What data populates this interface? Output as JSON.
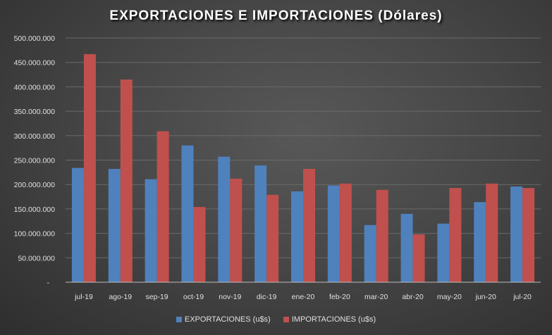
{
  "chart_data": {
    "type": "bar",
    "title": "EXPORTACIONES  E IMPORTACIONES  (Dólares)",
    "xlabel": "",
    "ylabel": "",
    "ylim": [
      0,
      500000000
    ],
    "yticks": [
      0,
      50000000,
      100000000,
      150000000,
      200000000,
      250000000,
      300000000,
      350000000,
      400000000,
      450000000,
      500000000
    ],
    "ytick_labels": [
      "-",
      "50.000.000",
      "100.000.000",
      "150.000.000",
      "200.000.000",
      "250.000.000",
      "300.000.000",
      "350.000.000",
      "400.000.000",
      "450.000.000",
      "500.000.000"
    ],
    "grid": true,
    "legend_position": "bottom",
    "categories": [
      "jul-19",
      "ago-19",
      "sep-19",
      "oct-19",
      "nov-19",
      "dic-19",
      "ene-20",
      "feb-20",
      "mar-20",
      "abr-20",
      "may-20",
      "jun-20",
      "jul-20"
    ],
    "series": [
      {
        "name": "EXPORTACIONES (u$s)",
        "color": "#4f81bd",
        "values": [
          234000000,
          232000000,
          211000000,
          280000000,
          257000000,
          239000000,
          186000000,
          198000000,
          117000000,
          140000000,
          120000000,
          164000000,
          196000000
        ]
      },
      {
        "name": "IMPORTACIONES (u$s)",
        "color": "#c0504d",
        "values": [
          467000000,
          415000000,
          309000000,
          154000000,
          212000000,
          179000000,
          232000000,
          202000000,
          189000000,
          98000000,
          193000000,
          202000000,
          193000000
        ]
      }
    ]
  }
}
